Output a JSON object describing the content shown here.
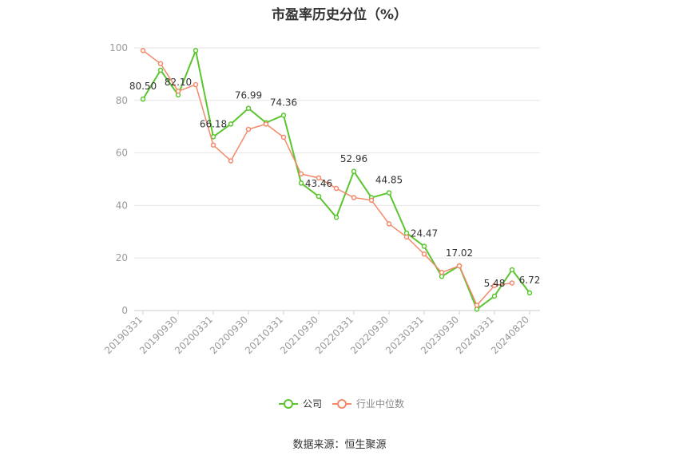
{
  "title": "市盈率历史分位（%）",
  "source": "数据来源：恒生聚源",
  "colors": {
    "company": "#5ac52e",
    "industry": "#f3896b",
    "grid": "#e6e6e6",
    "axis": "#cccccc"
  },
  "chart_data": {
    "type": "line",
    "title": "市盈率历史分位（%）",
    "ylim": [
      0,
      100
    ],
    "yticks": [
      0,
      20,
      40,
      60,
      80,
      100
    ],
    "grid": true,
    "legend": "bottom-center",
    "x_tick_labels": [
      "20190331",
      "20190930",
      "20200331",
      "20200930",
      "20210331",
      "20210930",
      "20220331",
      "20220930",
      "20230331",
      "20230930",
      "20240331",
      "20240820"
    ],
    "x": [
      "20190331",
      "20190630",
      "20190930",
      "20191231",
      "20200331",
      "20200630",
      "20200930",
      "20201231",
      "20210331",
      "20210630",
      "20210930",
      "20211231",
      "20220331",
      "20220630",
      "20220930",
      "20221231",
      "20230331",
      "20230630",
      "20230930",
      "20231231",
      "20240331",
      "20240630",
      "20240820"
    ],
    "series": [
      {
        "name": "公司",
        "values": [
          80.5,
          91.5,
          82.1,
          99.0,
          66.18,
          71.0,
          76.99,
          71.5,
          74.36,
          48.5,
          43.46,
          35.5,
          52.96,
          43.0,
          44.85,
          29.5,
          24.47,
          13.0,
          17.02,
          0.5,
          5.48,
          15.5,
          6.72
        ],
        "labels": {
          "0": "80.50",
          "2": "82.10",
          "4": "66.18",
          "6": "76.99",
          "8": "74.36",
          "10": "43.46",
          "12": "52.96",
          "14": "44.85",
          "16": "24.47",
          "18": "17.02",
          "20": "5.48",
          "22": "6.72"
        }
      },
      {
        "name": "行业中位数",
        "values": [
          99.0,
          94.0,
          83.5,
          86.0,
          63.0,
          57.0,
          69.0,
          71.0,
          66.0,
          52.0,
          50.5,
          46.5,
          43.0,
          42.0,
          33.0,
          28.0,
          21.5,
          14.5,
          17.0,
          2.0,
          9.5,
          10.5,
          null
        ]
      }
    ]
  }
}
